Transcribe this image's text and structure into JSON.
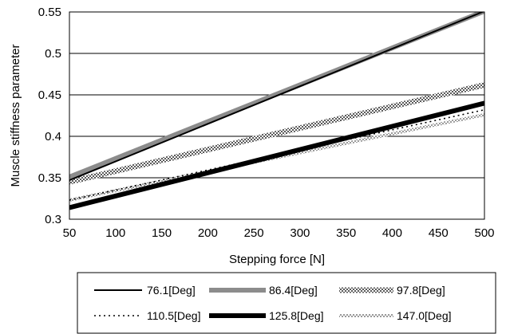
{
  "chart_data": {
    "type": "line",
    "title": "",
    "xlabel": "Stepping force [N]",
    "ylabel": "Muscle stiffness parameter",
    "xlim": [
      50,
      500
    ],
    "ylim": [
      0.3,
      0.55
    ],
    "xticks": [
      "50",
      "100",
      "150",
      "200",
      "250",
      "300",
      "350",
      "400",
      "450",
      "500"
    ],
    "yticks": [
      "0.3",
      "0.35",
      "0.4",
      "0.45",
      "0.5",
      "0.55"
    ],
    "grid": "horizontal",
    "legend_position": "bottom",
    "series": [
      {
        "name": "76.1[Deg]",
        "x": [
          50,
          500
        ],
        "y": [
          0.347,
          0.551
        ],
        "color": "#000000",
        "style": "thin-solid"
      },
      {
        "name": "86.4[Deg]",
        "x": [
          50,
          500
        ],
        "y": [
          0.351,
          0.551
        ],
        "color": "#8c8c8c",
        "style": "thick-solid"
      },
      {
        "name": "97.8[Deg]",
        "x": [
          50,
          500
        ],
        "y": [
          0.345,
          0.462
        ],
        "color": "#707070",
        "style": "thick-hatched"
      },
      {
        "name": "110.5[Deg]",
        "x": [
          50,
          500
        ],
        "y": [
          0.323,
          0.432
        ],
        "color": "#000000",
        "style": "dotted"
      },
      {
        "name": "125.8[Deg]",
        "x": [
          50,
          500
        ],
        "y": [
          0.314,
          0.44
        ],
        "color": "#000000",
        "style": "extra-thick-solid"
      },
      {
        "name": "147.0[Deg]",
        "x": [
          50,
          500
        ],
        "y": [
          0.323,
          0.426
        ],
        "color": "#8c8c8c",
        "style": "thin-hatched"
      }
    ]
  }
}
